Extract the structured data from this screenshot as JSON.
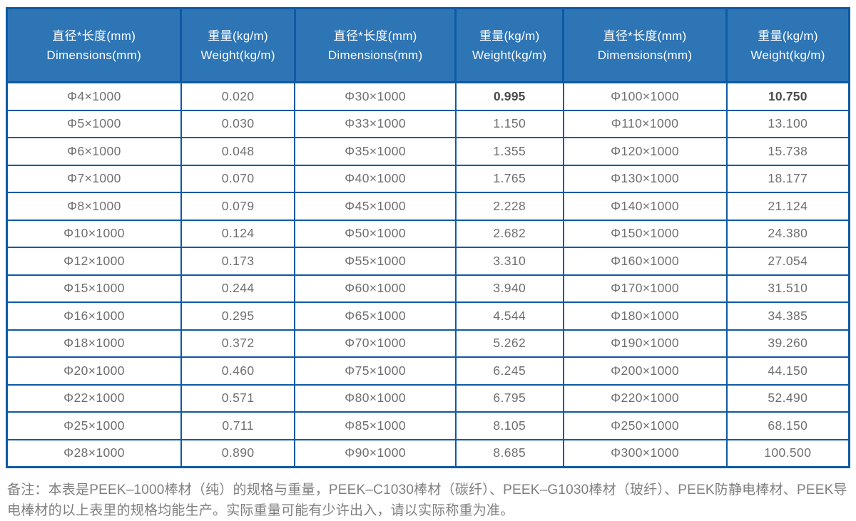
{
  "colors": {
    "header_bg": "#2E75B6",
    "grid": "#0E5AA3",
    "header_text": "#FFFFFF",
    "cell_text": "#6F6F6F",
    "bold_text": "#4A4A4A",
    "note_text": "#7F7F7F",
    "page_bg": "#FFFFFF"
  },
  "table": {
    "headers": [
      {
        "zh": "直径*长度(mm)",
        "en": "Dimensions(mm)"
      },
      {
        "zh": "重量(kg/m)",
        "en": "Weight(kg/m)"
      },
      {
        "zh": "直径*长度(mm)",
        "en": "Dimensions(mm)"
      },
      {
        "zh": "重量(kg/m)",
        "en": "Weight(kg/m)"
      },
      {
        "zh": "直径*长度(mm)",
        "en": "Dimensions(mm)"
      },
      {
        "zh": "重量(kg/m)",
        "en": "Weight(kg/m)"
      }
    ],
    "rows": [
      [
        "Φ4×1000",
        "0.020",
        "Φ30×1000",
        "0.995",
        "Φ100×1000",
        "10.750"
      ],
      [
        "Φ5×1000",
        "0.030",
        "Φ33×1000",
        "1.150",
        "Φ110×1000",
        "13.100"
      ],
      [
        "Φ6×1000",
        "0.048",
        "Φ35×1000",
        "1.355",
        "Φ120×1000",
        "15.738"
      ],
      [
        "Φ7×1000",
        "0.070",
        "Φ40×1000",
        "1.765",
        "Φ130×1000",
        "18.177"
      ],
      [
        "Φ8×1000",
        "0.079",
        "Φ45×1000",
        "2.228",
        "Φ140×1000",
        "21.124"
      ],
      [
        "Φ10×1000",
        "0.124",
        "Φ50×1000",
        "2.682",
        "Φ150×1000",
        "24.380"
      ],
      [
        "Φ12×1000",
        "0.173",
        "Φ55×1000",
        "3.310",
        "Φ160×1000",
        "27.054"
      ],
      [
        "Φ15×1000",
        "0.244",
        "Φ60×1000",
        "3.940",
        "Φ170×1000",
        "31.510"
      ],
      [
        "Φ16×1000",
        "0.295",
        "Φ65×1000",
        "4.544",
        "Φ180×1000",
        "34.385"
      ],
      [
        "Φ18×1000",
        "0.372",
        "Φ70×1000",
        "5.262",
        "Φ190×1000",
        "39.260"
      ],
      [
        "Φ20×1000",
        "0.460",
        "Φ75×1000",
        "6.245",
        "Φ200×1000",
        "44.150"
      ],
      [
        "Φ22×1000",
        "0.571",
        "Φ80×1000",
        "6.795",
        "Φ220×1000",
        "52.490"
      ],
      [
        "Φ25×1000",
        "0.711",
        "Φ85×1000",
        "8.105",
        "Φ250×1000",
        "68.150"
      ],
      [
        "Φ28×1000",
        "0.890",
        "Φ90×1000",
        "8.685",
        "Φ300×1000",
        "100.500"
      ]
    ],
    "bold_cells": [
      [
        0,
        3
      ],
      [
        0,
        5
      ]
    ],
    "column_widths_pct": [
      20.7,
      13.5,
      19.1,
      12.75,
      19.4,
      14.55
    ]
  },
  "note": {
    "text": "备注：本表是PEEK–1000棒材（纯）的规格与重量，PEEK–C1030棒材（碳纤）、PEEK–G1030棒材（玻纤）、PEEK防静电棒材、PEEK导电棒材的以上表里的规格均能生产。实际重量可能有少许出入，请以实际称重为准。"
  }
}
